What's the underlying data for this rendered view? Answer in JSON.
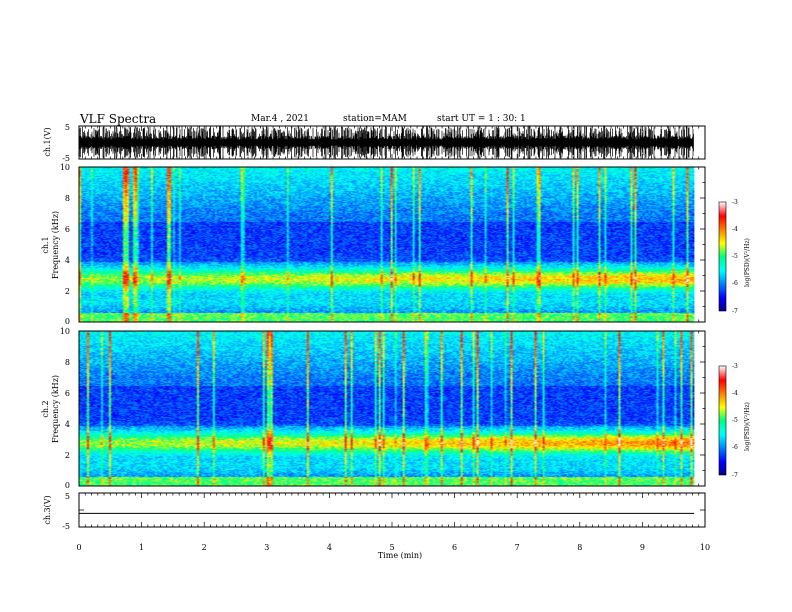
{
  "header": {
    "title": "VLF Spectra",
    "date": "Mar.4 , 2021",
    "station": "station=MAM",
    "start": "start UT =  1 : 30: 1"
  },
  "chart_data": [
    {
      "type": "line",
      "panel": "ch1-waveform",
      "ylabel": "ch.1(V)",
      "ylim": [
        -5,
        5
      ],
      "yticks": [
        "5",
        "-5"
      ],
      "xlim": [
        0,
        10
      ],
      "signal": "dense impulsive (sferic) bursts filling the panel"
    },
    {
      "type": "heatmap",
      "panel": "ch1-spectrogram",
      "ylabel": "ch.1\nFrequency (kHz)",
      "ylim": [
        0,
        10
      ],
      "yticks": [
        "0",
        "2",
        "4",
        "6",
        "8",
        "10"
      ],
      "xlim": [
        0,
        9.83
      ],
      "colorbar": {
        "label": "log(PSD)(V²/Hz)",
        "range": [
          -7,
          -3
        ],
        "ticks": [
          "-3",
          "-4",
          "-5",
          "-6",
          "-7"
        ]
      }
    },
    {
      "type": "heatmap",
      "panel": "ch2-spectrogram",
      "ylabel": "ch.2\nFrequency (kHz)",
      "ylim": [
        0,
        10
      ],
      "yticks": [
        "0",
        "2",
        "4",
        "6",
        "8",
        "10"
      ],
      "xlim": [
        0,
        9.83
      ],
      "colorbar": {
        "label": "log(PSD)(V²/Hz)",
        "range": [
          -7,
          -3
        ],
        "ticks": [
          "-3",
          "-4",
          "-5",
          "-6",
          "-7"
        ]
      }
    },
    {
      "type": "line",
      "panel": "ch3-waveform",
      "ylabel": "ch.3(V)",
      "ylim": [
        -5,
        5
      ],
      "yticks": [
        "5",
        "0",
        "-5"
      ],
      "xlim": [
        0,
        10
      ],
      "values_flat_at": -1
    }
  ],
  "xaxis": {
    "label": "Time (min)",
    "ticks": [
      "0",
      "1",
      "2",
      "3",
      "4",
      "5",
      "6",
      "7",
      "8",
      "9",
      "10"
    ]
  }
}
